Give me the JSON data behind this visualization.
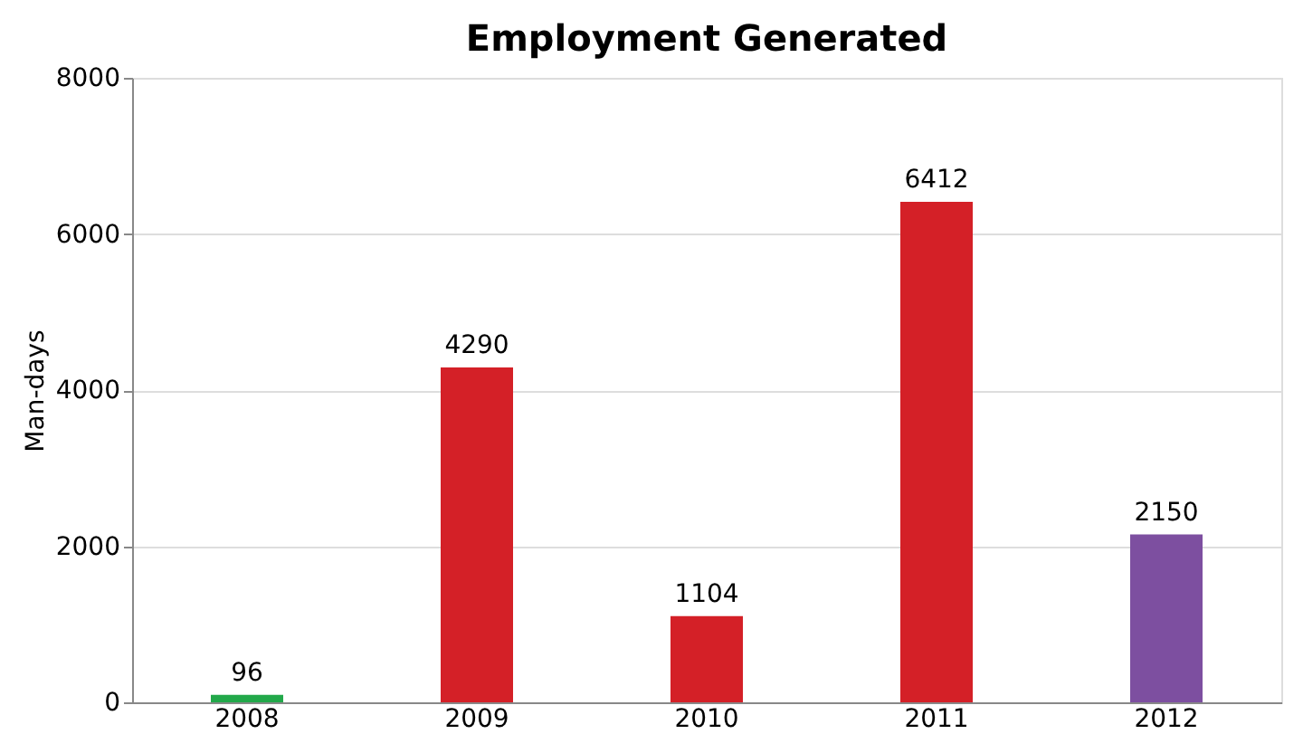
{
  "chart_data": {
    "type": "bar",
    "title": "Employment Generated",
    "ylabel": "Man-days",
    "categories": [
      "2008",
      "2009",
      "2010",
      "2011",
      "2012"
    ],
    "values": [
      96,
      4290,
      1104,
      6412,
      2150
    ],
    "colors": [
      "#22a84a",
      "#d42027",
      "#d42027",
      "#d42027",
      "#7d4fa0"
    ],
    "ylim": [
      0,
      8000
    ],
    "yticks": [
      0,
      2000,
      4000,
      6000,
      8000
    ],
    "grid": "y",
    "data_labels": true
  }
}
